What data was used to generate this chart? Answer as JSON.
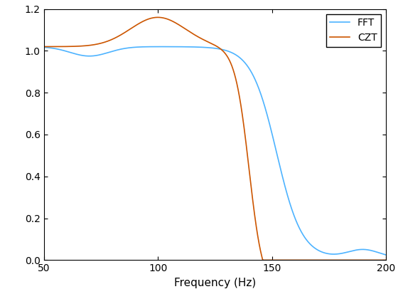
{
  "xlabel": "Frequency (Hz)",
  "ylabel": "",
  "xlim": [
    50,
    200
  ],
  "ylim": [
    0,
    1.2
  ],
  "yticks": [
    0,
    0.2,
    0.4,
    0.6,
    0.8,
    1.0,
    1.2
  ],
  "xticks": [
    50,
    100,
    150,
    200
  ],
  "fft_color": "#4db3ff",
  "czt_color": "#cc5500",
  "legend_labels": [
    "FFT",
    "CZT"
  ],
  "background_color": "#ffffff",
  "linewidth": 1.2,
  "figsize": [
    5.6,
    4.2
  ],
  "dpi": 100
}
